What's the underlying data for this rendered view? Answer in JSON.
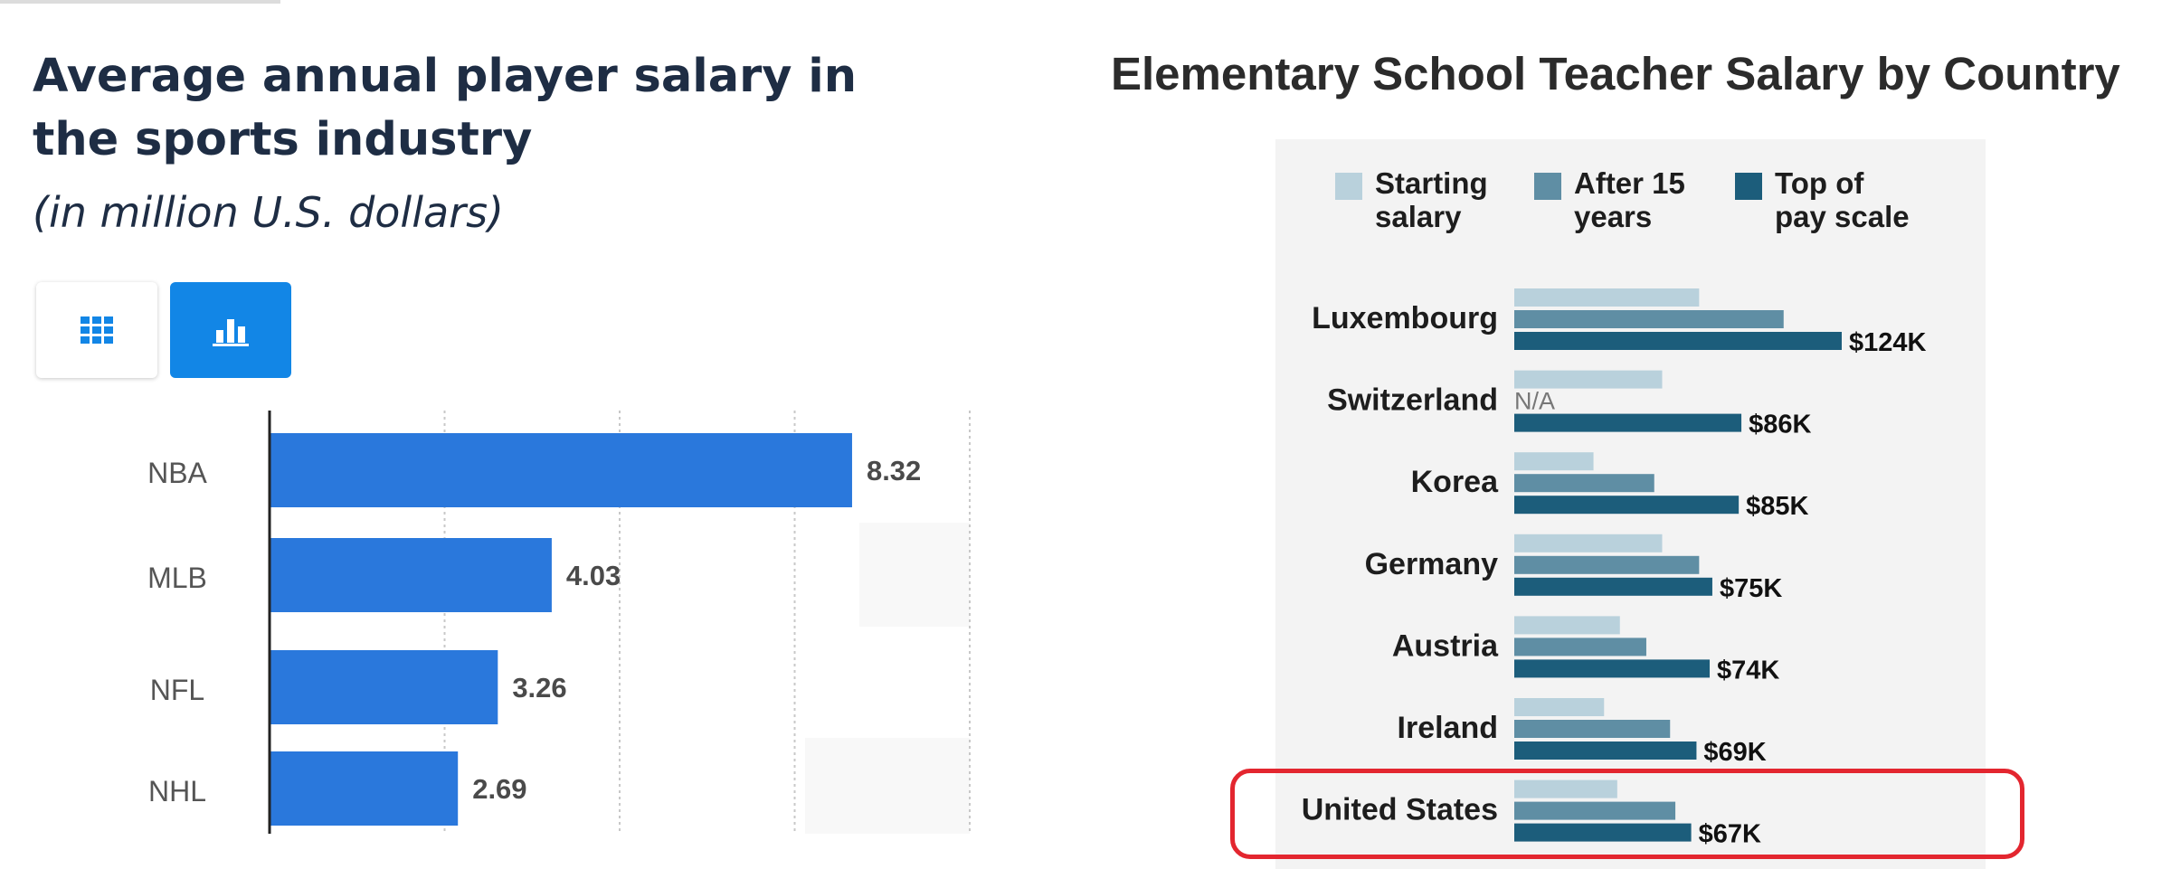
{
  "left": {
    "title": "Average annual player salary in the sports industry",
    "subtitle": "(in million U.S. dollars)",
    "toggle_table_icon": "grid-table-icon",
    "toggle_chart_icon": "bar-chart-icon"
  },
  "right": {
    "title": "Elementary School Teacher Salary by Country"
  },
  "colors": {
    "left_bar": "#2a78dc",
    "accent_button": "#1286e6",
    "starting": "#b9d1dc",
    "after15": "#5f8ea4",
    "top": "#1c5d7b",
    "highlight": "#e3262f"
  },
  "chart_data": [
    {
      "type": "bar",
      "orientation": "horizontal",
      "categories": [
        "NBA",
        "MLB",
        "NFL",
        "NHL"
      ],
      "values": [
        8.32,
        4.03,
        3.26,
        2.69
      ],
      "value_labels": [
        "8.32",
        "4.03",
        "3.26",
        "2.69"
      ],
      "xlim": [
        0,
        10
      ],
      "grid": "vertical dotted",
      "title": "Average annual player salary in the sports industry",
      "subtitle": "(in million U.S. dollars)"
    },
    {
      "type": "bar",
      "orientation": "horizontal",
      "title": "Elementary School Teacher Salary by Country",
      "categories": [
        "Luxembourg",
        "Switzerland",
        "Korea",
        "Germany",
        "Austria",
        "Ireland",
        "United States"
      ],
      "legend_position": "top",
      "series": [
        {
          "name": "Starting salary",
          "values": [
            70,
            56,
            30,
            56,
            40,
            34,
            39
          ]
        },
        {
          "name": "After 15 years",
          "values": [
            102,
            null,
            53,
            70,
            50,
            59,
            61
          ]
        },
        {
          "name": "Top of pay scale",
          "values": [
            124,
            86,
            85,
            75,
            74,
            69,
            67
          ]
        }
      ],
      "value_labels": [
        "$124K",
        "$86K",
        "$85K",
        "$75K",
        "$74K",
        "$69K",
        "$67K"
      ],
      "missing_label": "N/A",
      "xlim": [
        0,
        130
      ],
      "highlighted_category": "United States"
    }
  ]
}
